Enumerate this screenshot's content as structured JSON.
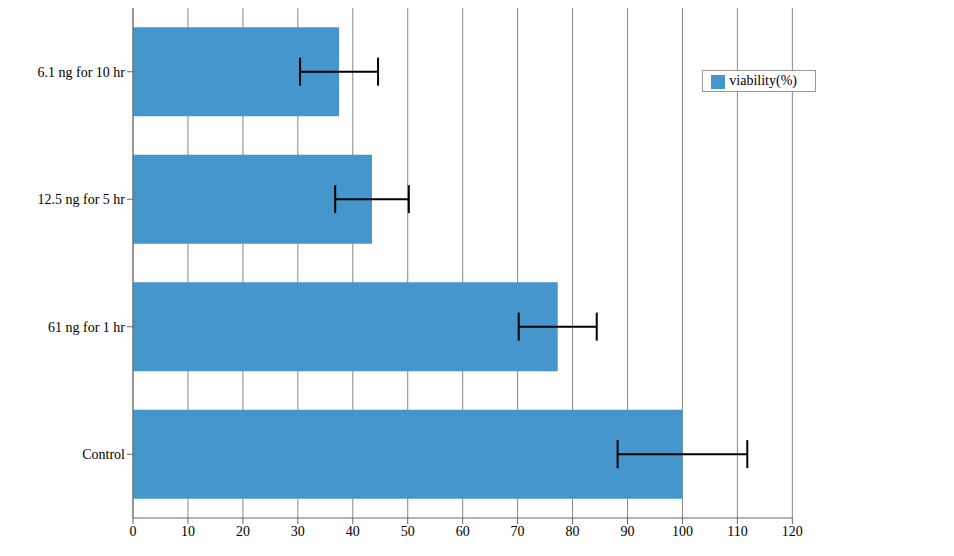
{
  "chart_data": {
    "type": "bar",
    "orientation": "horizontal",
    "categories": [
      "6.1 ng for 10 hr",
      "12.5 ng for 5 hr",
      "61 ng for 1 hr",
      "Control"
    ],
    "series": [
      {
        "name": "viability(%)",
        "color": "#4596cc",
        "values": [
          37.5,
          43.5,
          77.3,
          100
        ],
        "errors": [
          7.1,
          6.7,
          7.1,
          11.8
        ]
      }
    ],
    "xlim": [
      0,
      120
    ],
    "xticks": [
      0,
      10,
      20,
      30,
      40,
      50,
      60,
      70,
      80,
      90,
      100,
      110,
      120
    ],
    "grid": true,
    "legend": "upper right"
  }
}
